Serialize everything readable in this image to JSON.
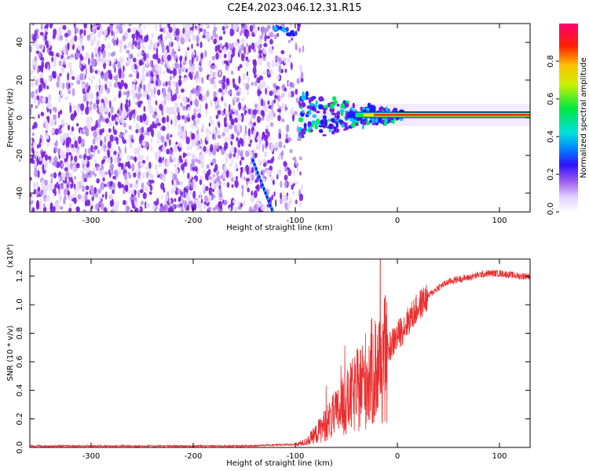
{
  "figure": {
    "title": "C2E4.2023.046.12.31.R15"
  },
  "chart_data": [
    {
      "type": "heatmap",
      "xlabel": "Height of straight line (km)",
      "ylabel": "Frequency (Hz)",
      "xlim": [
        -360,
        130
      ],
      "ylim": [
        -50,
        50
      ],
      "xticks": [
        "-300",
        "-200",
        "-100",
        "0",
        "100"
      ],
      "yticks": [
        "-40",
        "-20",
        "0",
        "20",
        "40"
      ],
      "colorbar": {
        "label": "Normalized spectral amplitude",
        "range": [
          0,
          1
        ],
        "ticks": [
          "0.0",
          "0.2",
          "0.4",
          "0.6",
          "0.8"
        ]
      },
      "features": {
        "noise_region_x": [
          -360,
          -95
        ],
        "noise_edge_x": -95,
        "carrier_band_x": [
          -95,
          130
        ],
        "carrier_freq_hz": 1.5,
        "upper_streak": {
          "x": [
            -120,
            -100
          ],
          "y": [
            48,
            44
          ]
        },
        "oblique_streak": {
          "x": [
            -142,
            -122
          ],
          "y": [
            -22,
            -50
          ]
        }
      },
      "colors": [
        "#ffffff",
        "#e8d8ff",
        "#b68cf0",
        "#7a20e0",
        "#1f1cff",
        "#00c8ff",
        "#00e860",
        "#ffe000",
        "#ff2000",
        "#ff0060"
      ]
    },
    {
      "type": "line",
      "xlabel": "Height of straight line (km)",
      "ylabel": "SNR (10 * v/v)",
      "scale_label": "(x10⁴)",
      "xlim": [
        -360,
        130
      ],
      "ylim": [
        0,
        1.32
      ],
      "xticks": [
        "-300",
        "-200",
        "-100",
        "0",
        "100"
      ],
      "yticks": [
        "0.0",
        "0.2",
        "0.4",
        "0.6",
        "0.8",
        "1.0",
        "1.2"
      ],
      "series": [
        {
          "color": "#e83030",
          "x": [
            -360,
            -300,
            -250,
            -200,
            -150,
            -110,
            -100,
            -90,
            -80,
            -70,
            -60,
            -50,
            -40,
            -30,
            -20,
            -10,
            0,
            10,
            20,
            30,
            40,
            50,
            60,
            70,
            80,
            90,
            100,
            110,
            120,
            130
          ],
          "y": [
            0.01,
            0.01,
            0.01,
            0.01,
            0.01,
            0.02,
            0.02,
            0.04,
            0.1,
            0.18,
            0.25,
            0.33,
            0.42,
            0.52,
            0.6,
            0.68,
            0.78,
            0.88,
            0.98,
            1.06,
            1.12,
            1.16,
            1.18,
            1.19,
            1.21,
            1.22,
            1.22,
            1.21,
            1.2,
            1.2
          ]
        }
      ]
    }
  ]
}
